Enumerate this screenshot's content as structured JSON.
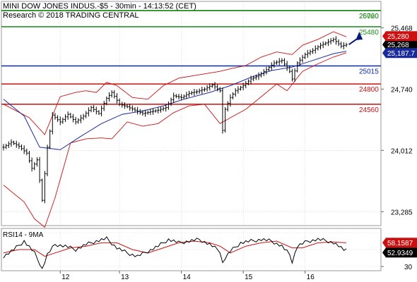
{
  "header": {
    "title": "MINI DOW JONES INDUS.-$5 - 30min - 14:13:52 (CET)",
    "copyright": "Research © 2018 TRADING CENTRAL"
  },
  "colors": {
    "green": "#1f8a1f",
    "blue": "#0a2aa8",
    "red": "#cc1010",
    "price": "#000000",
    "bollinger": "#cc1010",
    "ma": "#1a2a9a",
    "projection": "#0a1a7a"
  },
  "chart_data": [
    {
      "type": "candlestick",
      "title": "MINI DOW JONES INDUS.-$5 - 30min - 14:13:52 (CET)",
      "ylim": [
        23120,
        25780
      ],
      "y_ticks": [
        {
          "value": 25468,
          "label": "25,468"
        },
        {
          "value": 24740,
          "label": "24,740"
        },
        {
          "value": 24012,
          "label": "24,012"
        },
        {
          "value": 23285,
          "label": "23,285"
        }
      ],
      "x_ticks": [
        {
          "index": 22,
          "label": "12"
        },
        {
          "index": 45,
          "label": "13"
        },
        {
          "index": 69,
          "label": "14"
        },
        {
          "index": 93,
          "label": "15"
        },
        {
          "index": 117,
          "label": "16"
        }
      ],
      "levels": [
        {
          "value": 26020,
          "label": "26020",
          "color": "green"
        },
        {
          "value": 25760,
          "label": "25760",
          "color": "green"
        },
        {
          "value": 25480,
          "label": "25480",
          "color": "green"
        },
        {
          "value": 25015,
          "label": "25015",
          "color": "blue"
        },
        {
          "value": 24800,
          "label": "24800",
          "color": "red"
        },
        {
          "value": 24560,
          "label": "24560",
          "color": "red"
        }
      ],
      "price_tags": [
        {
          "value": 25268,
          "label": "25,268",
          "bg": "#000000"
        },
        {
          "value": 25187.7,
          "label": "25,187.7",
          "bg": "#1a2a9a"
        },
        {
          "value": 25280,
          "label": "25,280",
          "bg": "#cc1010"
        }
      ],
      "projection": {
        "from": [
          134,
          25268
        ],
        "to": [
          138,
          25760
        ]
      },
      "close_anchors": [
        [
          0,
          24050
        ],
        [
          3,
          24110
        ],
        [
          6,
          24060
        ],
        [
          9,
          23980
        ],
        [
          11,
          23800
        ],
        [
          13,
          23900
        ],
        [
          15,
          23420
        ],
        [
          17,
          24050
        ],
        [
          19,
          24430
        ],
        [
          22,
          24350
        ],
        [
          25,
          24440
        ],
        [
          28,
          24350
        ],
        [
          31,
          24420
        ],
        [
          34,
          24520
        ],
        [
          37,
          24450
        ],
        [
          40,
          24630
        ],
        [
          42,
          24700
        ],
        [
          45,
          24560
        ],
        [
          48,
          24530
        ],
        [
          51,
          24490
        ],
        [
          54,
          24450
        ],
        [
          57,
          24470
        ],
        [
          60,
          24490
        ],
        [
          63,
          24520
        ],
        [
          66,
          24660
        ],
        [
          69,
          24640
        ],
        [
          72,
          24690
        ],
        [
          75,
          24710
        ],
        [
          78,
          24740
        ],
        [
          81,
          24790
        ],
        [
          84,
          24720
        ],
        [
          85,
          24250
        ],
        [
          86,
          24500
        ],
        [
          88,
          24640
        ],
        [
          90,
          24720
        ],
        [
          93,
          24780
        ],
        [
          96,
          24860
        ],
        [
          99,
          24900
        ],
        [
          102,
          24970
        ],
        [
          105,
          25050
        ],
        [
          108,
          25080
        ],
        [
          111,
          24950
        ],
        [
          112,
          24860
        ],
        [
          114,
          25050
        ],
        [
          117,
          25150
        ],
        [
          120,
          25200
        ],
        [
          123,
          25260
        ],
        [
          126,
          25300
        ],
        [
          128,
          25330
        ],
        [
          131,
          25250
        ],
        [
          133,
          25268
        ]
      ],
      "bollinger_upper": [
        [
          0,
          24560
        ],
        [
          10,
          24400
        ],
        [
          16,
          24200
        ],
        [
          22,
          24650
        ],
        [
          28,
          24700
        ],
        [
          32,
          24720
        ],
        [
          36,
          24700
        ],
        [
          40,
          24820
        ],
        [
          44,
          24780
        ],
        [
          50,
          24640
        ],
        [
          56,
          24620
        ],
        [
          62,
          24780
        ],
        [
          68,
          24870
        ],
        [
          74,
          24900
        ],
        [
          80,
          24930
        ],
        [
          84,
          24950
        ],
        [
          88,
          24980
        ],
        [
          94,
          25020
        ],
        [
          100,
          25120
        ],
        [
          106,
          25180
        ],
        [
          112,
          25150
        ],
        [
          116,
          25260
        ],
        [
          122,
          25330
        ],
        [
          128,
          25420
        ],
        [
          133,
          25360
        ]
      ],
      "bollinger_lower": [
        [
          0,
          23600
        ],
        [
          8,
          23400
        ],
        [
          12,
          23200
        ],
        [
          16,
          23100
        ],
        [
          20,
          23450
        ],
        [
          26,
          24100
        ],
        [
          32,
          24150
        ],
        [
          38,
          24160
        ],
        [
          42,
          24150
        ],
        [
          48,
          24350
        ],
        [
          54,
          24300
        ],
        [
          60,
          24330
        ],
        [
          66,
          24460
        ],
        [
          72,
          24540
        ],
        [
          78,
          24560
        ],
        [
          84,
          24330
        ],
        [
          88,
          24400
        ],
        [
          94,
          24500
        ],
        [
          100,
          24650
        ],
        [
          106,
          24800
        ],
        [
          110,
          24720
        ],
        [
          116,
          24950
        ],
        [
          122,
          25040
        ],
        [
          128,
          25120
        ],
        [
          133,
          25170
        ]
      ],
      "ma_line": [
        [
          0,
          24620
        ],
        [
          8,
          24420
        ],
        [
          14,
          24050
        ],
        [
          22,
          24020
        ],
        [
          30,
          24180
        ],
        [
          38,
          24330
        ],
        [
          46,
          24440
        ],
        [
          54,
          24480
        ],
        [
          62,
          24540
        ],
        [
          70,
          24620
        ],
        [
          80,
          24700
        ],
        [
          88,
          24780
        ],
        [
          96,
          24880
        ],
        [
          104,
          24960
        ],
        [
          112,
          25000
        ],
        [
          120,
          25080
        ],
        [
          128,
          25160
        ],
        [
          133,
          25188
        ]
      ]
    },
    {
      "type": "line",
      "title": "RSI14 - 9MA",
      "ylim": [
        25,
        75
      ],
      "y_ticks": [
        {
          "value": 30,
          "label": "30"
        }
      ],
      "reference_levels": [
        30,
        50,
        70
      ],
      "series_names": [
        "RSI14",
        "9MA"
      ],
      "value_tags": [
        {
          "value": 58.1587,
          "label": "58.1587",
          "bg": "#cc1010"
        },
        {
          "value": 52.9349,
          "label": "52.9349",
          "bg": "#000000"
        }
      ],
      "rsi": [
        [
          0,
          42
        ],
        [
          4,
          50
        ],
        [
          8,
          60
        ],
        [
          12,
          46
        ],
        [
          14,
          34
        ],
        [
          15,
          27
        ],
        [
          17,
          44
        ],
        [
          20,
          56
        ],
        [
          24,
          54
        ],
        [
          28,
          50
        ],
        [
          32,
          56
        ],
        [
          36,
          60
        ],
        [
          40,
          63
        ],
        [
          44,
          52
        ],
        [
          48,
          46
        ],
        [
          52,
          42
        ],
        [
          56,
          48
        ],
        [
          60,
          54
        ],
        [
          64,
          62
        ],
        [
          68,
          58
        ],
        [
          72,
          60
        ],
        [
          76,
          62
        ],
        [
          80,
          56
        ],
        [
          84,
          48
        ],
        [
          85,
          34
        ],
        [
          86,
          40
        ],
        [
          88,
          48
        ],
        [
          92,
          58
        ],
        [
          96,
          60
        ],
        [
          100,
          62
        ],
        [
          104,
          60
        ],
        [
          108,
          54
        ],
        [
          111,
          44
        ],
        [
          112,
          36
        ],
        [
          114,
          54
        ],
        [
          118,
          60
        ],
        [
          122,
          62
        ],
        [
          126,
          60
        ],
        [
          128,
          58
        ],
        [
          130,
          54
        ],
        [
          132,
          49
        ],
        [
          133,
          53
        ]
      ],
      "ma9": [
        [
          0,
          46
        ],
        [
          6,
          50
        ],
        [
          12,
          50
        ],
        [
          16,
          42
        ],
        [
          20,
          46
        ],
        [
          26,
          52
        ],
        [
          32,
          54
        ],
        [
          38,
          58
        ],
        [
          44,
          58
        ],
        [
          50,
          50
        ],
        [
          56,
          46
        ],
        [
          62,
          52
        ],
        [
          68,
          58
        ],
        [
          74,
          60
        ],
        [
          80,
          58
        ],
        [
          84,
          54
        ],
        [
          88,
          46
        ],
        [
          94,
          54
        ],
        [
          100,
          58
        ],
        [
          106,
          60
        ],
        [
          112,
          52
        ],
        [
          116,
          52
        ],
        [
          122,
          58
        ],
        [
          128,
          59
        ],
        [
          133,
          58
        ]
      ]
    }
  ]
}
